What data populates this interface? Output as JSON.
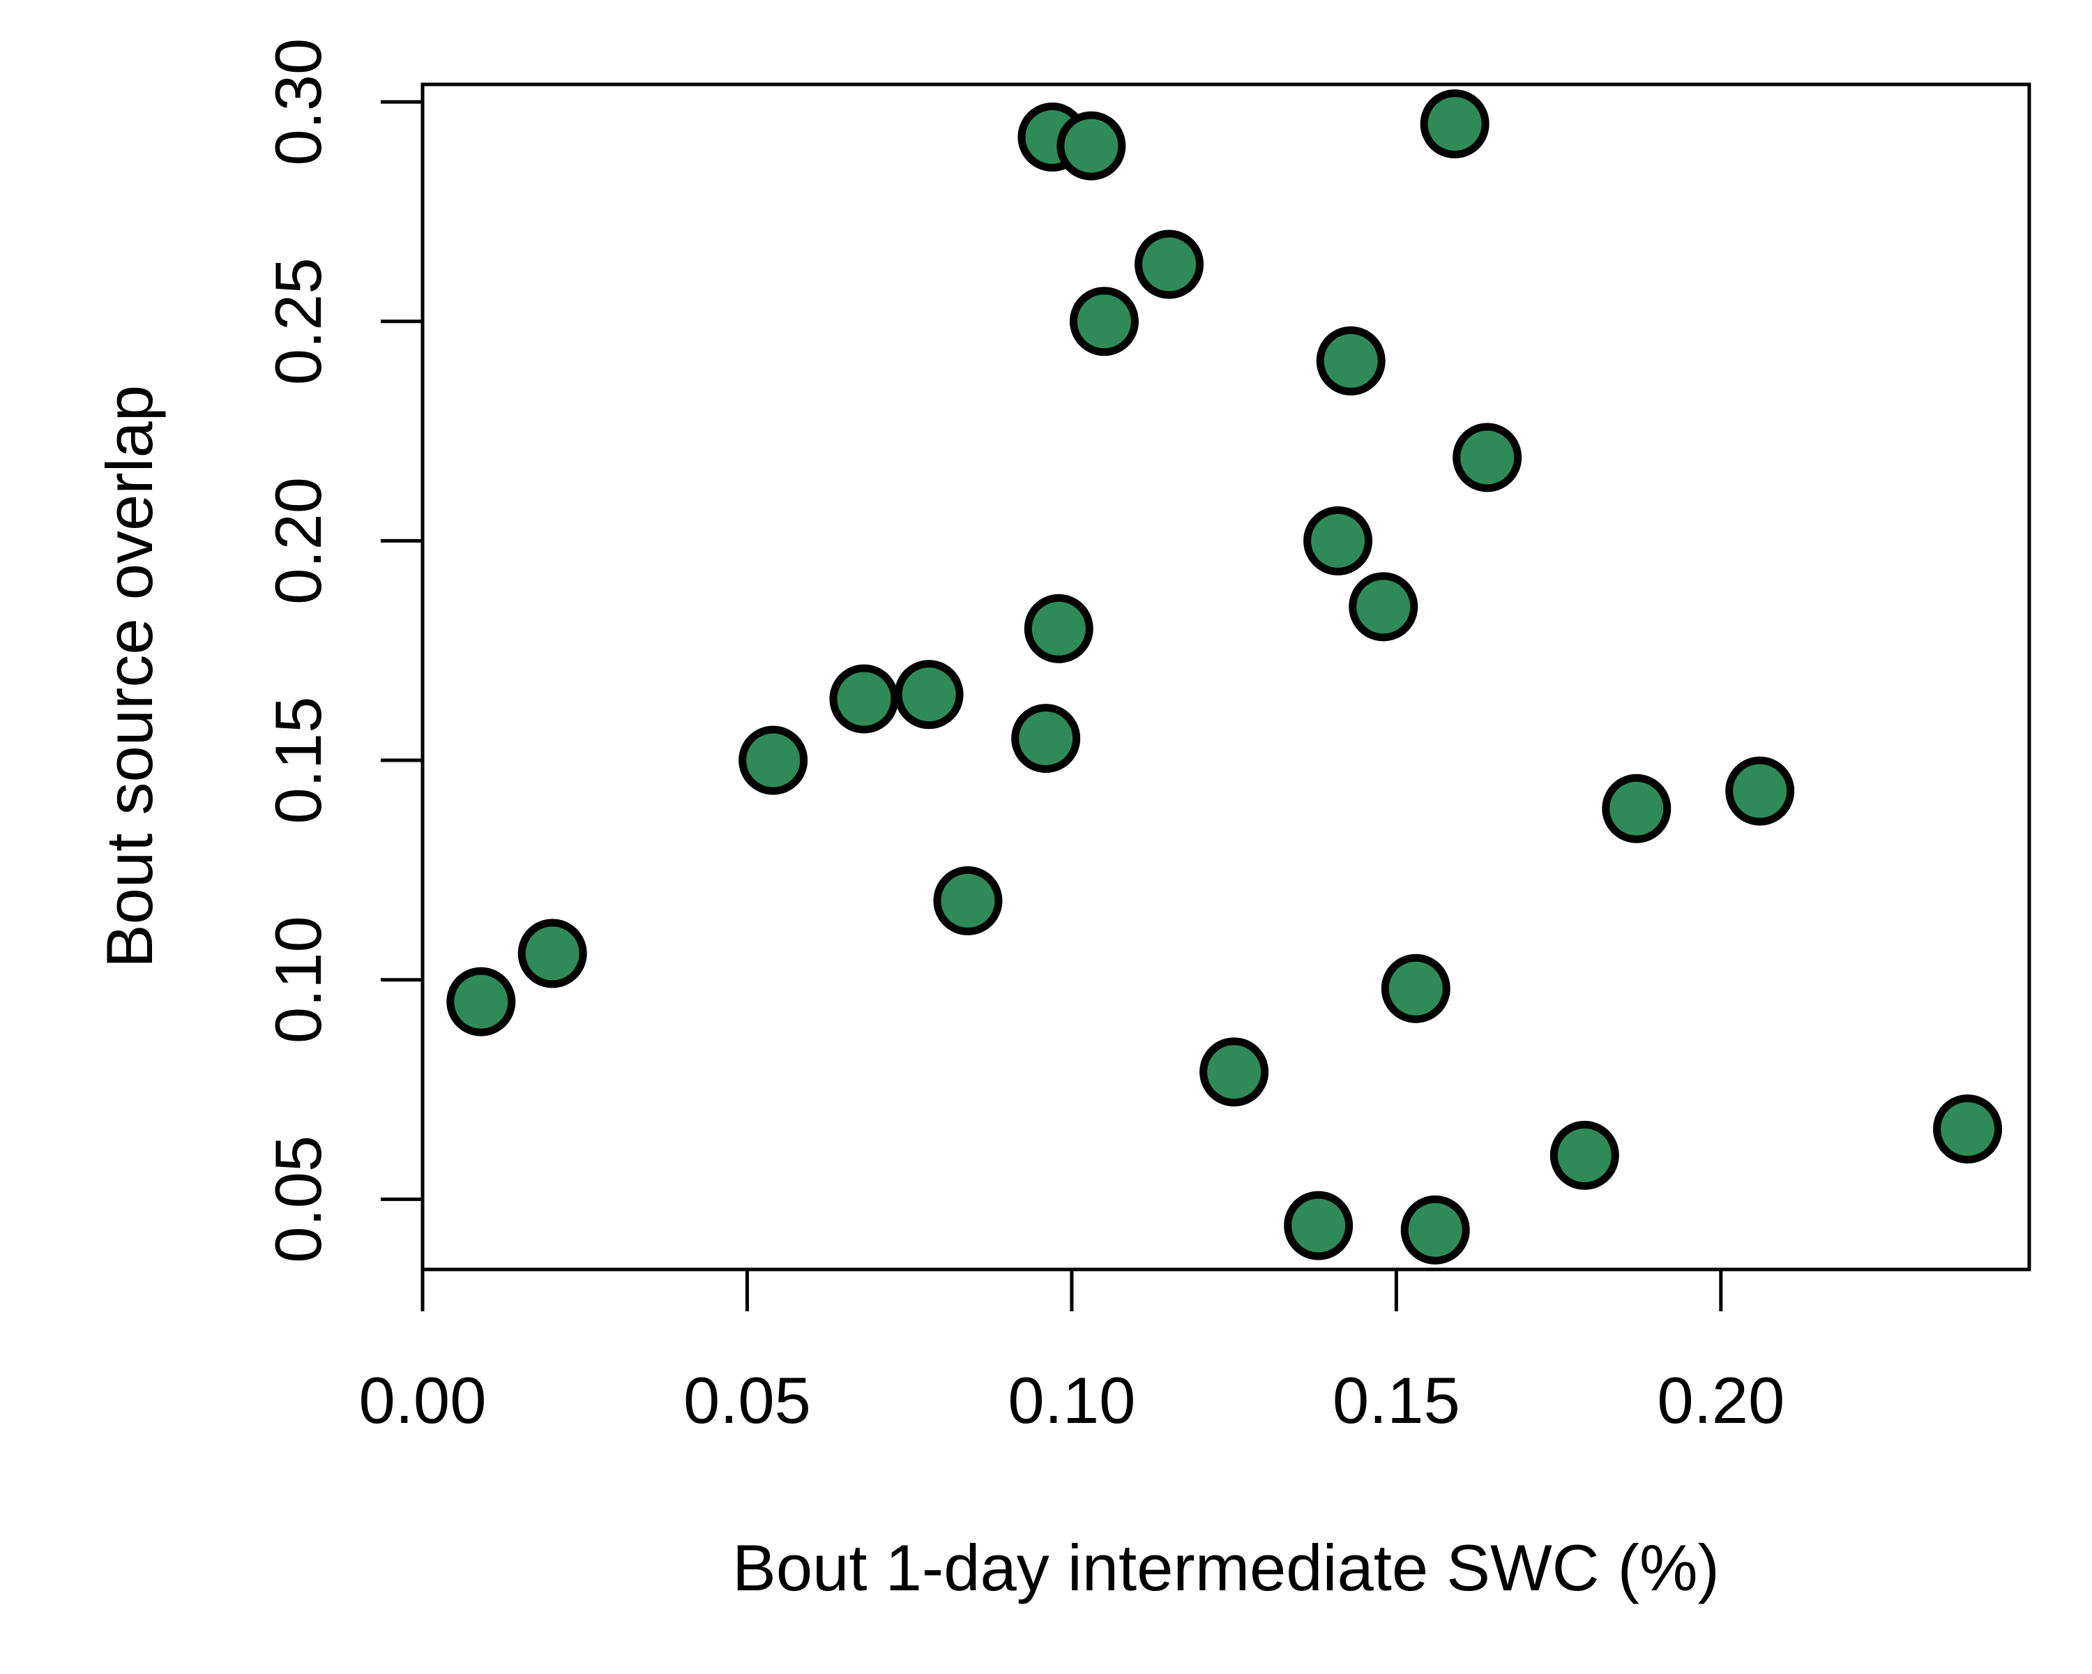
{
  "chart_data": {
    "type": "scatter",
    "title": "",
    "xlabel": "Bout 1-day intermediate SWC (%)",
    "ylabel": "Bout source overlap",
    "xlim": [
      0.0,
      0.2475
    ],
    "ylim": [
      0.034,
      0.304
    ],
    "x_ticks": [
      "0.00",
      "0.05",
      "0.10",
      "0.15",
      "0.20"
    ],
    "y_ticks": [
      "0.05",
      "0.10",
      "0.15",
      "0.20",
      "0.25",
      "0.30"
    ],
    "grid": false,
    "legend": "none",
    "marker_fill": "#2e8b57",
    "marker_edge": "#000000",
    "points": [
      {
        "x": 0.009,
        "y": 0.095
      },
      {
        "x": 0.02,
        "y": 0.106
      },
      {
        "x": 0.054,
        "y": 0.15
      },
      {
        "x": 0.068,
        "y": 0.164
      },
      {
        "x": 0.078,
        "y": 0.165
      },
      {
        "x": 0.084,
        "y": 0.118
      },
      {
        "x": 0.096,
        "y": 0.155
      },
      {
        "x": 0.097,
        "y": 0.292
      },
      {
        "x": 0.098,
        "y": 0.18
      },
      {
        "x": 0.103,
        "y": 0.29
      },
      {
        "x": 0.105,
        "y": 0.25
      },
      {
        "x": 0.115,
        "y": 0.263
      },
      {
        "x": 0.125,
        "y": 0.079
      },
      {
        "x": 0.138,
        "y": 0.044
      },
      {
        "x": 0.141,
        "y": 0.2
      },
      {
        "x": 0.143,
        "y": 0.241
      },
      {
        "x": 0.148,
        "y": 0.185
      },
      {
        "x": 0.153,
        "y": 0.098
      },
      {
        "x": 0.156,
        "y": 0.043
      },
      {
        "x": 0.159,
        "y": 0.295
      },
      {
        "x": 0.164,
        "y": 0.219
      },
      {
        "x": 0.179,
        "y": 0.06
      },
      {
        "x": 0.187,
        "y": 0.139
      },
      {
        "x": 0.206,
        "y": 0.143
      },
      {
        "x": 0.238,
        "y": 0.066
      }
    ]
  }
}
